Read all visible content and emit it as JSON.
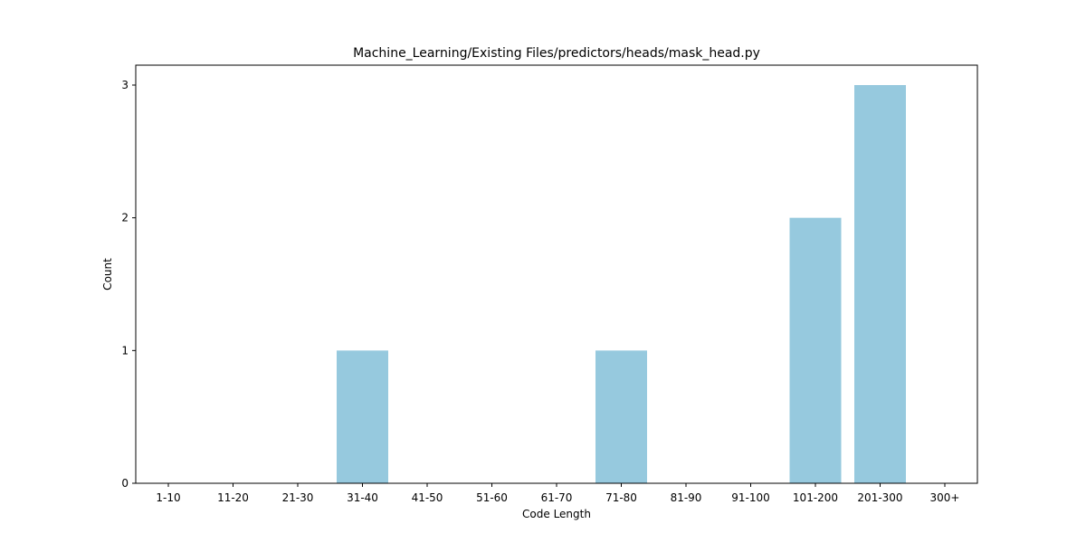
{
  "chart_data": {
    "type": "bar",
    "title": "Machine_Learning/Existing Files/predictors/heads/mask_head.py",
    "xlabel": "Code Length",
    "ylabel": "Count",
    "categories": [
      "1-10",
      "11-20",
      "21-30",
      "31-40",
      "41-50",
      "51-60",
      "61-70",
      "71-80",
      "81-90",
      "91-100",
      "101-200",
      "201-300",
      "300+"
    ],
    "values": [
      0,
      0,
      0,
      1,
      0,
      0,
      0,
      1,
      0,
      0,
      2,
      3,
      0
    ],
    "ylim": [
      0,
      3.15
    ],
    "yticks": [
      0,
      1,
      2,
      3
    ],
    "grid": false,
    "bar_color": "#96c9de"
  }
}
